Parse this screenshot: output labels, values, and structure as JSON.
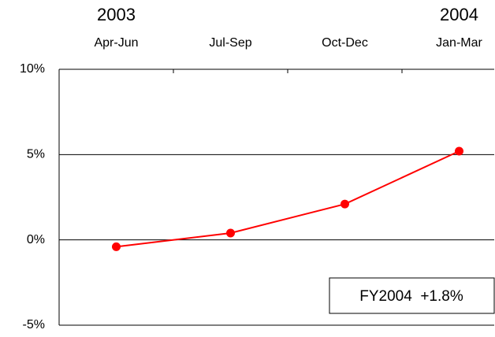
{
  "chart_data": {
    "type": "line",
    "categories": [
      "Apr-Jun",
      "Jul-Sep",
      "Oct-Dec",
      "Jan-Mar"
    ],
    "year_labels": [
      "2003",
      null,
      null,
      "2004"
    ],
    "values": [
      -0.4,
      0.4,
      2.1,
      5.2
    ],
    "color": "#ff0000",
    "ylim": [
      -5,
      10
    ],
    "yticks": [
      {
        "value": 10,
        "label": "10%"
      },
      {
        "value": 5,
        "label": "5%"
      },
      {
        "value": 0,
        "label": "0%"
      },
      {
        "value": -5,
        "label": "-5%"
      }
    ],
    "grid": true,
    "annotation": "FY2004  +1.8%"
  }
}
